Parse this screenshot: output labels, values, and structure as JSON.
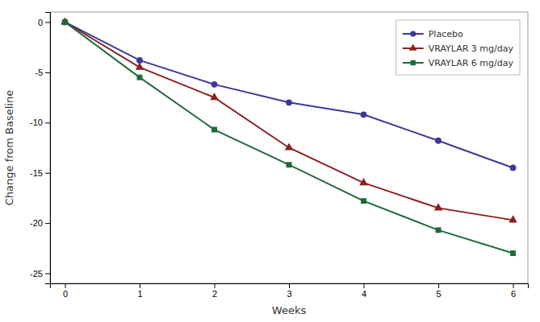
{
  "chart_data": {
    "type": "line",
    "xlabel": "Weeks",
    "ylabel": "Change from Baseline",
    "x": [
      0,
      1,
      2,
      3,
      4,
      5,
      6
    ],
    "series": [
      {
        "name": "Placebo",
        "color": "#3a3a9a",
        "marker": "circle",
        "values": [
          0,
          -3.8,
          -6.2,
          -8.0,
          -9.2,
          -11.8,
          -14.5
        ]
      },
      {
        "name": "VRAYLAR 3 mg/day",
        "color": "#8b2020",
        "marker": "triangle",
        "values": [
          0,
          -4.5,
          -7.5,
          -12.5,
          -16.0,
          -18.5,
          -19.7
        ]
      },
      {
        "name": "VRAYLAR 6 mg/day",
        "color": "#1e6b3a",
        "marker": "square",
        "values": [
          0,
          -5.5,
          -10.7,
          -14.2,
          -17.8,
          -20.7,
          -23.0
        ]
      }
    ],
    "xlim": [
      -0.2,
      6.2
    ],
    "ylim": [
      -26,
      1.0
    ],
    "xticks": [
      0,
      1,
      2,
      3,
      4,
      5,
      6
    ],
    "yticks": [
      0,
      -5,
      -10,
      -15,
      -20,
      -25
    ],
    "grid": false,
    "legend": "upper right"
  }
}
